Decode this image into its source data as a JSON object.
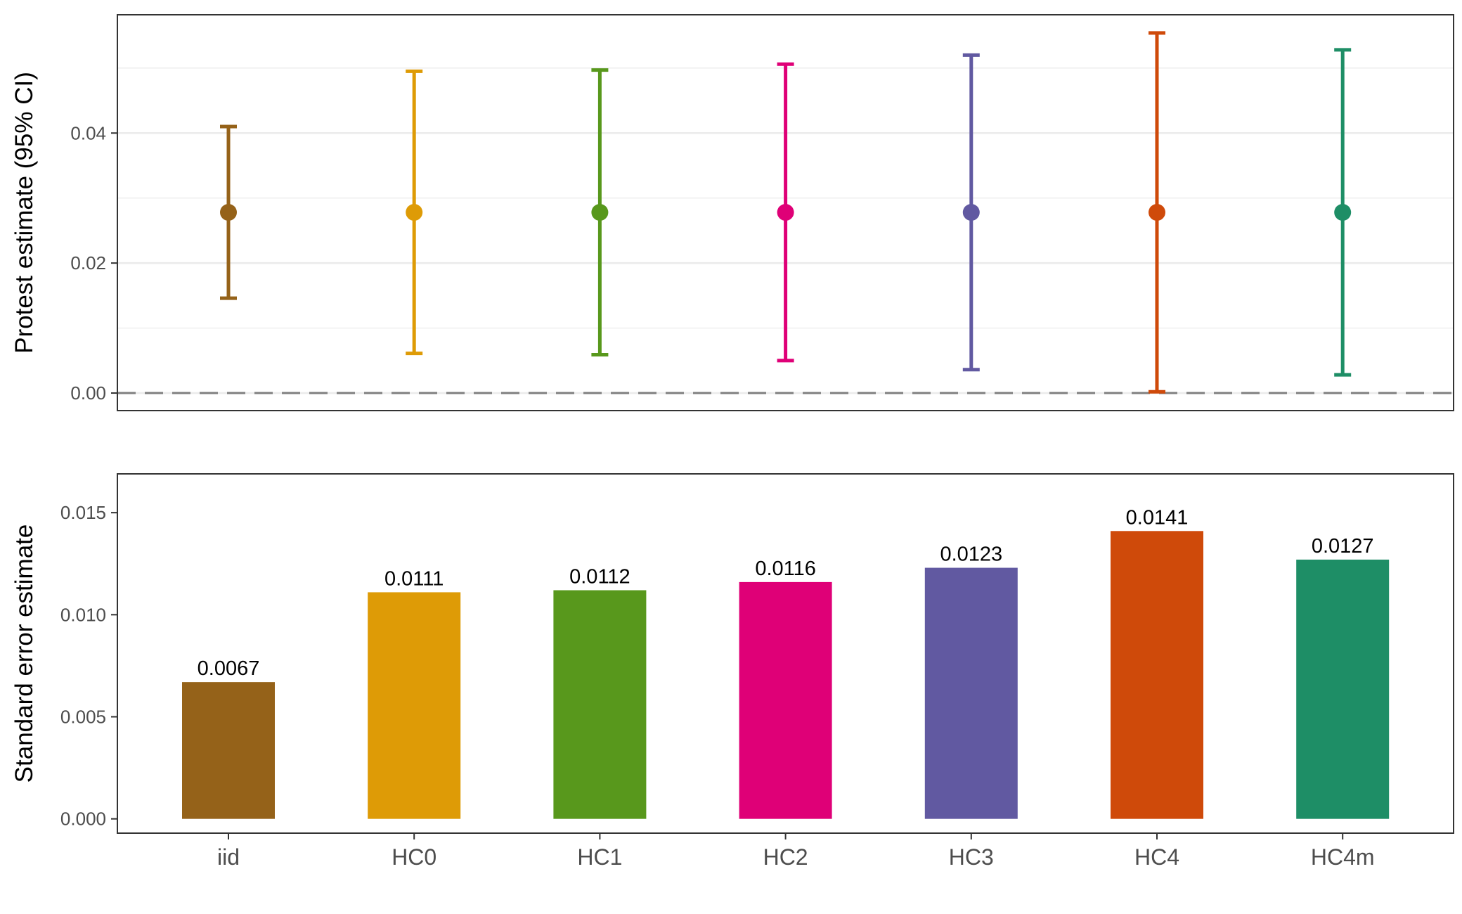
{
  "chart_data": [
    {
      "type": "errorbar",
      "ylabel": "Protest estimate (95% CI)",
      "xlabel": "",
      "categories": [
        "iid",
        "HC0",
        "HC1",
        "HC2",
        "HC3",
        "HC4",
        "HC4m"
      ],
      "estimate": [
        0.0278,
        0.0278,
        0.0278,
        0.0278,
        0.0278,
        0.0278,
        0.0278
      ],
      "ci_lower": [
        0.0146,
        0.0061,
        0.0059,
        0.005,
        0.0036,
        0.0002,
        0.0028
      ],
      "ci_upper": [
        0.041,
        0.0495,
        0.0497,
        0.0506,
        0.052,
        0.0554,
        0.0528
      ],
      "ylim": [
        -0.0027,
        0.0582
      ],
      "yticks": [
        "0.00",
        "0.02",
        "0.04"
      ],
      "ytick_values": [
        0.0,
        0.02,
        0.04
      ],
      "reference_line": 0.0,
      "grid": true,
      "x_tick_labels_shown": false
    },
    {
      "type": "bar",
      "ylabel": "Standard error estimate",
      "xlabel": "",
      "categories": [
        "iid",
        "HC0",
        "HC1",
        "HC2",
        "HC3",
        "HC4",
        "HC4m"
      ],
      "values": [
        0.0067,
        0.0111,
        0.0112,
        0.0116,
        0.0123,
        0.0141,
        0.0127
      ],
      "labels": [
        "0.0067",
        "0.0111",
        "0.0112",
        "0.0116",
        "0.0123",
        "0.0141",
        "0.0127"
      ],
      "ylim": [
        -0.0007,
        0.0169
      ],
      "yticks": [
        "0.000",
        "0.005",
        "0.010",
        "0.015"
      ],
      "ytick_values": [
        0.0,
        0.005,
        0.01,
        0.015
      ],
      "grid": false,
      "x_tick_labels_shown": true
    }
  ],
  "colors": {
    "iid": "#956219",
    "HC0": "#DE9B06",
    "HC1": "#58981C",
    "HC2": "#DF0077",
    "HC3": "#6159A1",
    "HC4": "#CF4A0A",
    "HC4m": "#1E8E66",
    "gridline": "#EBEBEB",
    "reference_line": "#7F7F7F",
    "panel_border": "#333333"
  }
}
